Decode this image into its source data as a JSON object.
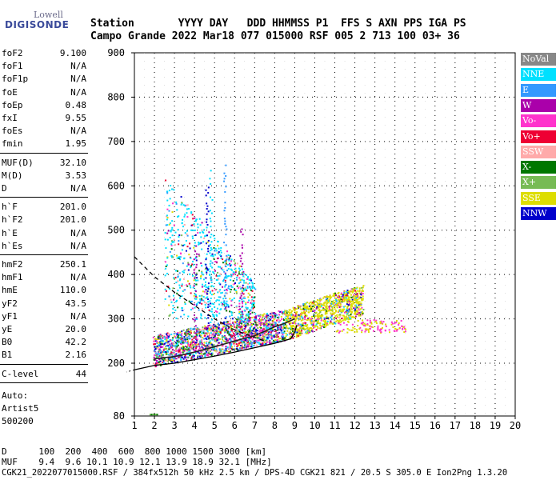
{
  "logo": {
    "top": "Lowell",
    "bottom": "DIGISONDE"
  },
  "header": {
    "line1": "Station       YYYY DAY   DDD HHMMSS P1  FFS S AXN PPS IGA PS",
    "line2": "Campo Grande 2022 Mar18 077 015000 RSF 005 2 713 100 03+ 36"
  },
  "params_group1": [
    {
      "k": "foF2",
      "v": "9.100"
    },
    {
      "k": "foF1",
      "v": "N/A"
    },
    {
      "k": "foF1p",
      "v": "N/A"
    },
    {
      "k": "foE",
      "v": "N/A"
    },
    {
      "k": "foEp",
      "v": "0.48"
    },
    {
      "k": "fxI",
      "v": "9.55"
    },
    {
      "k": "foEs",
      "v": "N/A"
    },
    {
      "k": "fmin",
      "v": "1.95"
    }
  ],
  "params_group2": [
    {
      "k": "MUF(D)",
      "v": "32.10"
    },
    {
      "k": "M(D)",
      "v": "3.53"
    },
    {
      "k": "D",
      "v": "N/A"
    }
  ],
  "params_group3": [
    {
      "k": "h`F",
      "v": "201.0"
    },
    {
      "k": "h`F2",
      "v": "201.0"
    },
    {
      "k": "h`E",
      "v": "N/A"
    },
    {
      "k": "h`Es",
      "v": "N/A"
    }
  ],
  "params_group4": [
    {
      "k": "hmF2",
      "v": "250.1"
    },
    {
      "k": "hmF1",
      "v": "N/A"
    },
    {
      "k": "hmE",
      "v": "110.0"
    },
    {
      "k": "yF2",
      "v": "43.5"
    },
    {
      "k": "yF1",
      "v": "N/A"
    },
    {
      "k": "yE",
      "v": "20.0"
    },
    {
      "k": "B0",
      "v": "42.2"
    },
    {
      "k": "B1",
      "v": "2.16"
    }
  ],
  "params_group5": [
    {
      "k": "C-level",
      "v": "44"
    }
  ],
  "autoscale": {
    "line1": "Auto:",
    "line2": "Artist5",
    "line3": "500200"
  },
  "footer": {
    "d_line": "D      100  200  400  600  800 1000 1500 3000 [km]",
    "muf_line": "MUF    9.4  9.6 10.1 10.9 12.1 13.9 18.9 32.1 [MHz]",
    "file_line": "CGK21_2022077015000.RSF / 384fx512h 50 kHz 2.5 km / DPS-4D CGK21 821 / 20.5 S 305.0 E Ion2Png 1.3.20"
  },
  "legend": [
    {
      "label": "NoVal",
      "color": "#888888"
    },
    {
      "label": "NNE",
      "color": "#00e0ff"
    },
    {
      "label": "E",
      "color": "#3399ff"
    },
    {
      "label": "W",
      "color": "#aa00aa"
    },
    {
      "label": "Vo-",
      "color": "#ff33cc"
    },
    {
      "label": "Vo+",
      "color": "#ee0033"
    },
    {
      "label": "SSW",
      "color": "#ffaaaa"
    },
    {
      "label": "X-",
      "color": "#007700"
    },
    {
      "label": "X+",
      "color": "#77bb55"
    },
    {
      "label": "SSE",
      "color": "#dddd00"
    },
    {
      "label": "NNW",
      "color": "#0000cc"
    }
  ],
  "chart_data": {
    "type": "scatter",
    "xlim": [
      1,
      20
    ],
    "ylim": [
      80,
      900
    ],
    "x_ticks": [
      1,
      2,
      3,
      4,
      5,
      6,
      7,
      8,
      9,
      10,
      11,
      12,
      13,
      14,
      15,
      16,
      17,
      18,
      19,
      20
    ],
    "y_ticks": [
      80,
      200,
      300,
      400,
      500,
      600,
      700,
      800,
      900
    ],
    "grid": true,
    "legend_position": "right",
    "series": [
      {
        "name": "profile",
        "style": "solid",
        "x": [
          1.0,
          2.0,
          3.0,
          4.0,
          5.0,
          6.0,
          7.0,
          8.0,
          8.8,
          9.0,
          9.1
        ],
        "y": [
          185,
          195,
          200,
          208,
          216,
          225,
          235,
          245,
          255,
          270,
          285
        ]
      },
      {
        "name": "trace",
        "style": "solid",
        "x": [
          2.0,
          3.0,
          4.0,
          5.0,
          6.0,
          7.0,
          7.5,
          8.0,
          8.5,
          9.0
        ],
        "y": [
          210,
          215,
          225,
          237,
          250,
          262,
          272,
          282,
          290,
          300
        ]
      },
      {
        "name": "fitted",
        "style": "dashed",
        "x": [
          1.0,
          2.0,
          3.0,
          4.0,
          5.0,
          6.0,
          7.0,
          7.5
        ],
        "y": [
          440,
          395,
          360,
          330,
          300,
          275,
          258,
          250
        ]
      }
    ]
  }
}
